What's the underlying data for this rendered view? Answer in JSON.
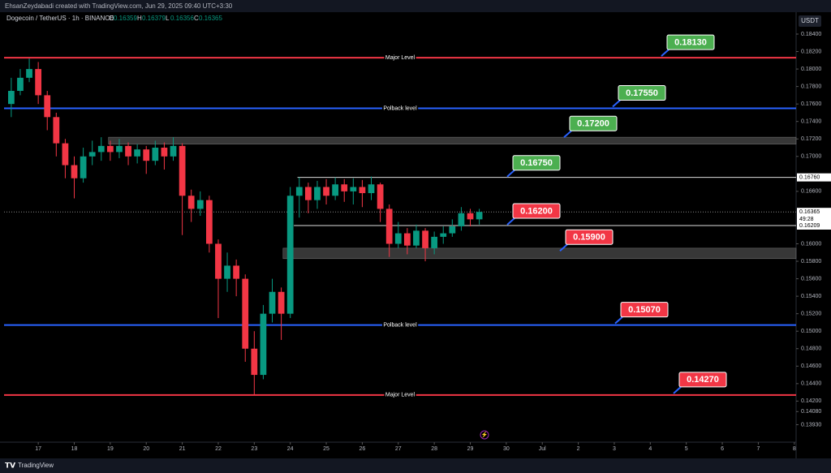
{
  "header": {
    "credit": "EhsanZeydabadi created with TradingView.com, Jun 29, 2025 09:40 UTC+3:30",
    "symbol": "Dogecoin / TetherUS · 1h · BINANCE",
    "ohlc": [
      {
        "key": "O",
        "value": "0.16359"
      },
      {
        "key": "H",
        "value": "0.16379"
      },
      {
        "key": "L",
        "value": "0.16356"
      },
      {
        "key": "C",
        "value": "0.16365"
      }
    ],
    "currency": "USDT"
  },
  "footer": {
    "brand": "TradingView"
  },
  "chart_data": {
    "type": "candlestick",
    "up_color": "#089981",
    "down_color": "#f23645",
    "x": [
      16.25,
      16.5,
      16.75,
      17,
      17.25,
      17.5,
      17.75,
      18,
      18.25,
      18.5,
      18.75,
      19,
      19.25,
      19.5,
      19.75,
      20,
      20.25,
      20.5,
      20.75,
      21,
      21.25,
      21.5,
      21.75,
      22,
      22.25,
      22.5,
      22.75,
      23,
      23.25,
      23.5,
      23.75,
      24,
      24.25,
      24.5,
      24.75,
      25,
      25.25,
      25.5,
      25.75,
      26,
      26.25,
      26.5,
      26.75,
      27,
      27.25,
      27.5,
      27.75,
      28,
      28.25,
      28.5,
      28.75,
      29,
      29.25
    ],
    "open": [
      0.176,
      0.1775,
      0.179,
      0.18,
      0.177,
      0.1745,
      0.1715,
      0.169,
      0.1675,
      0.17,
      0.1705,
      0.1712,
      0.1705,
      0.1712,
      0.17,
      0.1708,
      0.1695,
      0.171,
      0.17,
      0.1712,
      0.1655,
      0.164,
      0.165,
      0.16,
      0.156,
      0.1575,
      0.156,
      0.148,
      0.145,
      0.152,
      0.1545,
      0.152,
      0.1655,
      0.1665,
      0.165,
      0.1665,
      0.1655,
      0.1668,
      0.166,
      0.1665,
      0.1658,
      0.1668,
      0.164,
      0.16,
      0.1612,
      0.1598,
      0.1615,
      0.1595,
      0.1608,
      0.1612,
      0.162,
      0.1635,
      0.1628
    ],
    "high": [
      0.179,
      0.18,
      0.1812,
      0.1808,
      0.1775,
      0.175,
      0.172,
      0.17,
      0.171,
      0.1718,
      0.1722,
      0.1718,
      0.172,
      0.1716,
      0.1714,
      0.1712,
      0.1718,
      0.1716,
      0.1722,
      0.1715,
      0.1662,
      0.166,
      0.1655,
      0.1605,
      0.159,
      0.1582,
      0.1565,
      0.15,
      0.153,
      0.156,
      0.155,
      0.1665,
      0.1676,
      0.167,
      0.1672,
      0.1674,
      0.1676,
      0.1674,
      0.1675,
      0.1673,
      0.1677,
      0.167,
      0.1645,
      0.1625,
      0.1618,
      0.1622,
      0.1618,
      0.1614,
      0.162,
      0.1628,
      0.1642,
      0.164,
      0.164
    ],
    "low": [
      0.1745,
      0.177,
      0.1785,
      0.176,
      0.173,
      0.17,
      0.1675,
      0.1652,
      0.167,
      0.169,
      0.1695,
      0.1695,
      0.1698,
      0.169,
      0.1692,
      0.168,
      0.169,
      0.1685,
      0.1695,
      0.161,
      0.1625,
      0.1632,
      0.159,
      0.1515,
      0.1545,
      0.154,
      0.1465,
      0.1427,
      0.1445,
      0.151,
      0.149,
      0.1515,
      0.163,
      0.1635,
      0.164,
      0.1645,
      0.165,
      0.1648,
      0.1645,
      0.1642,
      0.165,
      0.1625,
      0.1585,
      0.1595,
      0.1588,
      0.1595,
      0.158,
      0.1588,
      0.16,
      0.1608,
      0.1615,
      0.162,
      0.1622
    ],
    "close": [
      0.1775,
      0.179,
      0.18,
      0.177,
      0.1745,
      0.1715,
      0.169,
      0.1675,
      0.17,
      0.1705,
      0.1712,
      0.1705,
      0.1712,
      0.17,
      0.1708,
      0.1695,
      0.171,
      0.17,
      0.1712,
      0.1655,
      0.164,
      0.165,
      0.16,
      0.156,
      0.1575,
      0.156,
      0.148,
      0.145,
      0.152,
      0.1545,
      0.152,
      0.1655,
      0.1665,
      0.165,
      0.1665,
      0.1655,
      0.1668,
      0.166,
      0.1665,
      0.1658,
      0.1668,
      0.164,
      0.16,
      0.1612,
      0.1598,
      0.1615,
      0.1595,
      0.1608,
      0.1612,
      0.162,
      0.1635,
      0.1628,
      0.16365
    ],
    "xlim": [
      16.05,
      38.05
    ],
    "xticks": [
      17,
      18,
      19,
      20,
      21,
      22,
      23,
      24,
      25,
      26,
      27,
      28,
      29,
      30,
      {
        "value": 31,
        "label": "Jul"
      },
      {
        "value": 32,
        "label": "2"
      },
      {
        "value": 33,
        "label": "3"
      },
      {
        "value": 34,
        "label": "4"
      },
      {
        "value": 35,
        "label": "5"
      },
      {
        "value": 36,
        "label": "6"
      },
      {
        "value": 37,
        "label": "7"
      },
      {
        "value": 38,
        "label": "8"
      }
    ],
    "ylim": [
      0.1373,
      0.1853
    ],
    "yticks": [
      {
        "value": 0.184,
        "label": "0.18400"
      },
      {
        "value": 0.182,
        "label": "0.18200"
      },
      {
        "value": 0.18,
        "label": "0.18000"
      },
      {
        "value": 0.178,
        "label": "0.17800"
      },
      {
        "value": 0.176,
        "label": "0.17600"
      },
      {
        "value": 0.174,
        "label": "0.17400"
      },
      {
        "value": 0.172,
        "label": "0.17200"
      },
      {
        "value": 0.17,
        "label": "0.17000"
      },
      {
        "value": 0.166,
        "label": "0.16600"
      },
      {
        "value": 0.16,
        "label": "0.16000"
      },
      {
        "value": 0.158,
        "label": "0.15800"
      },
      {
        "value": 0.156,
        "label": "0.15600"
      },
      {
        "value": 0.154,
        "label": "0.15400"
      },
      {
        "value": 0.152,
        "label": "0.15200"
      },
      {
        "value": 0.15,
        "label": "0.15000"
      },
      {
        "value": 0.148,
        "label": "0.14800"
      },
      {
        "value": 0.146,
        "label": "0.14600"
      },
      {
        "value": 0.144,
        "label": "0.14400"
      },
      {
        "value": 0.142,
        "label": "0.14200"
      },
      {
        "value": 0.1408,
        "label": "0.14080"
      },
      {
        "value": 0.1393,
        "label": "0.13930"
      }
    ],
    "levels": [
      {
        "name": "Major Level",
        "value": 0.1813,
        "color": "#f23645"
      },
      {
        "name": "Polback level",
        "value": 0.1755,
        "color": "#2962ff"
      },
      {
        "name": "Polback level",
        "value": 0.1507,
        "color": "#2962ff"
      },
      {
        "name": "Major Level",
        "value": 0.1427,
        "color": "#f23645"
      }
    ],
    "zones": [
      {
        "from": 0.1722,
        "to": 0.1714
      },
      {
        "from": 0.1595,
        "to": 0.1583
      }
    ],
    "price_labels": [
      {
        "value": 0.1676,
        "label": "0.16760"
      },
      {
        "value": 0.16365,
        "label": "0.16365",
        "countdown": "49:28"
      },
      {
        "value": 0.16209,
        "label": "0.16209"
      }
    ],
    "annotations": [
      {
        "value": 0.1813,
        "label": "0.18130",
        "color": "#4caf50"
      },
      {
        "value": 0.1755,
        "label": "0.17550",
        "color": "#4caf50"
      },
      {
        "value": 0.172,
        "label": "0.17200",
        "color": "#4caf50"
      },
      {
        "value": 0.1675,
        "label": "0.16750",
        "color": "#4caf50"
      },
      {
        "value": 0.162,
        "label": "0.16200",
        "color": "#f23645"
      },
      {
        "value": 0.159,
        "label": "0.15900",
        "color": "#f23645"
      },
      {
        "value": 0.1507,
        "label": "0.15070",
        "color": "#f23645"
      },
      {
        "value": 0.1427,
        "label": "0.14270",
        "color": "#f23645"
      }
    ]
  }
}
